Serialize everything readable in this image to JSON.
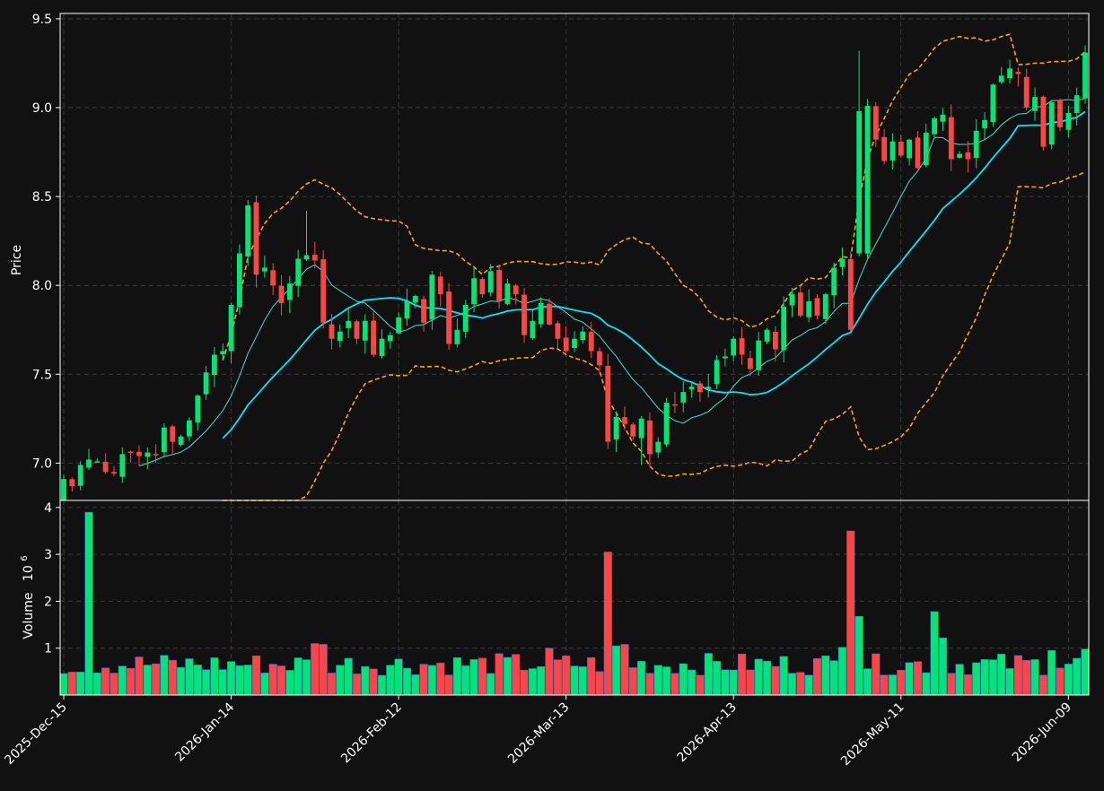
{
  "chart_data": {
    "type": "candlestick",
    "title": "",
    "price_axis": {
      "label": "Price",
      "ylim": [
        6.79,
        9.53
      ],
      "ticks": [
        "7.0",
        "7.5",
        "8.0",
        "8.5",
        "9.0",
        "9.5"
      ],
      "tick_values": [
        7.0,
        7.5,
        8.0,
        8.5,
        9.0,
        9.5
      ]
    },
    "volume_axis": {
      "label": "Volume",
      "exponent": "10",
      "exponent_power": "6",
      "ylim": [
        0,
        4.15
      ],
      "ticks": [
        "1",
        "2",
        "3",
        "4"
      ],
      "tick_values": [
        1,
        2,
        3,
        4
      ]
    },
    "x_axis": {
      "tick_labels": [
        "2025-Dec-15",
        "2026-Jan-14",
        "2026-Feb-12",
        "2026-Mar-13",
        "2026-Apr-13",
        "2026-May-11",
        "2026-Jun-09"
      ],
      "tick_indices": [
        0,
        20,
        40,
        60,
        80,
        100,
        120
      ]
    },
    "grid": true,
    "colors": {
      "background": "#111111",
      "up": "#00e676",
      "down": "#ff4444",
      "grid": "#3a3a3a",
      "axis": "#ffffff",
      "text": "#ffffff",
      "bollinger": "#ffa500",
      "ma_fast": "#40e0d0",
      "ma_slow": "#00e5ff",
      "volume_edge": "#4169e1"
    },
    "overlays": [
      "Bollinger upper",
      "Bollinger lower",
      "moving average (fast)",
      "moving average (slow)"
    ],
    "close_prices": [
      6.91,
      6.87,
      6.99,
      7.02,
      7.01,
      6.95,
      6.94,
      7.05,
      7.06,
      7.04,
      7.06,
      7.05,
      7.2,
      7.12,
      7.15,
      7.24,
      7.38,
      7.51,
      7.61,
      7.63,
      7.89,
      8.18,
      8.45,
      8.06,
      8.1,
      8.0,
      7.9,
      8.01,
      8.15,
      8.17,
      8.14,
      7.79,
      7.7,
      7.74,
      7.8,
      7.7,
      7.8,
      7.61,
      7.7,
      7.72,
      7.82,
      7.91,
      7.94,
      7.79,
      8.06,
      7.95,
      7.67,
      7.75,
      7.89,
      8.04,
      7.95,
      8.08,
      7.91,
      8.01,
      7.95,
      7.72,
      7.8,
      7.9,
      7.78,
      7.7,
      7.63,
      7.7,
      7.74,
      7.63,
      7.55,
      7.12,
      7.26,
      7.22,
      7.15,
      7.25,
      7.05,
      7.12,
      7.34,
      7.33,
      7.4,
      7.43,
      7.4,
      7.43,
      7.58,
      7.6,
      7.7,
      7.61,
      7.53,
      7.69,
      7.75,
      7.64,
      7.88,
      7.95,
      7.83,
      7.91,
      7.83,
      7.95,
      8.1,
      8.15,
      7.75,
      8.98,
      9.01,
      8.82,
      8.7,
      8.81,
      8.73,
      8.82,
      8.66,
      8.86,
      8.94,
      8.96,
      8.71,
      8.74,
      8.71,
      8.87,
      8.93,
      9.13,
      9.18,
      9.22,
      9.19,
      9.0,
      9.06,
      8.78,
      9.03,
      8.89,
      8.97,
      9.07,
      9.31
    ]
  }
}
